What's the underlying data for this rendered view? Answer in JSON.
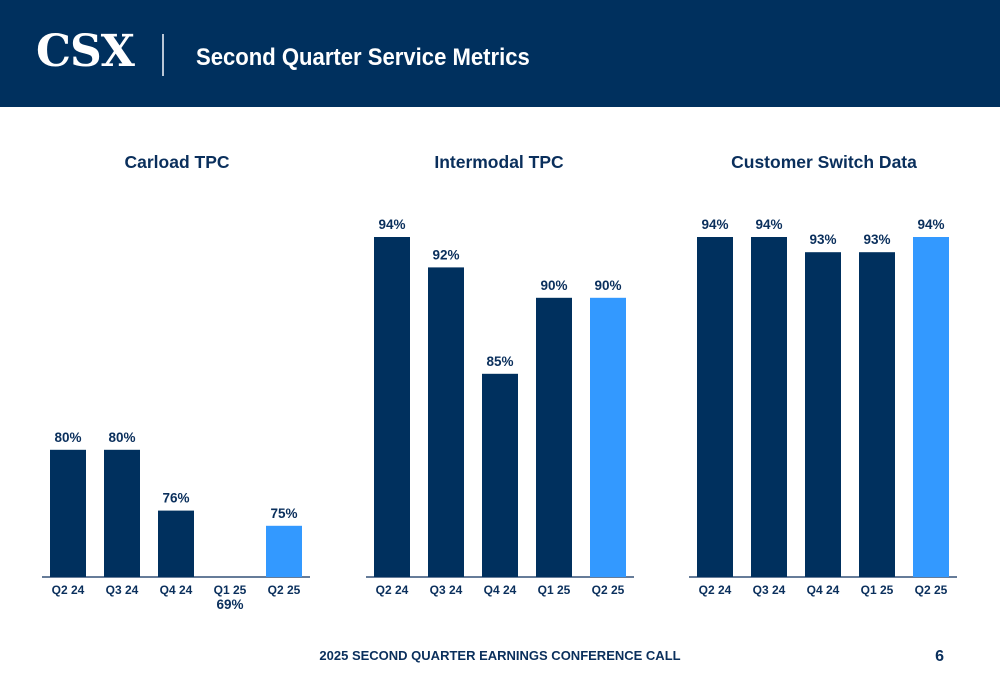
{
  "header": {
    "logo_text": "CSX",
    "title": "Second Quarter Service Metrics",
    "background_color": "#00305e"
  },
  "colors": {
    "prior_bar": "#00305e",
    "current_bar": "#3399ff",
    "label_text": "#0a2f5c"
  },
  "chart_data": [
    {
      "type": "bar",
      "title": "Carload TPC",
      "categories": [
        "Q2 24",
        "Q3 24",
        "Q4 24",
        "Q1 25",
        "Q2 25"
      ],
      "values": [
        80,
        80,
        76,
        69,
        75
      ],
      "data_labels": [
        "80%",
        "80%",
        "76%",
        "69%",
        "75%"
      ],
      "highlight_index": 4,
      "ylim": [
        0,
        100
      ],
      "grid": false
    },
    {
      "type": "bar",
      "title": "Intermodal TPC",
      "categories": [
        "Q2 24",
        "Q3 24",
        "Q4 24",
        "Q1 25",
        "Q2 25"
      ],
      "values": [
        94,
        92,
        85,
        90,
        90
      ],
      "data_labels": [
        "94%",
        "92%",
        "85%",
        "90%",
        "90%"
      ],
      "highlight_index": 4,
      "ylim": [
        0,
        100
      ],
      "grid": false
    },
    {
      "type": "bar",
      "title": "Customer Switch Data",
      "categories": [
        "Q2 24",
        "Q3 24",
        "Q4 24",
        "Q1 25",
        "Q2 25"
      ],
      "values": [
        94,
        94,
        93,
        93,
        94
      ],
      "data_labels": [
        "94%",
        "94%",
        "93%",
        "93%",
        "94%"
      ],
      "highlight_index": 4,
      "ylim": [
        0,
        100
      ],
      "grid": false
    }
  ],
  "footer": {
    "text": "2025 SECOND QUARTER EARNINGS CONFERENCE CALL",
    "page_number": "6"
  }
}
